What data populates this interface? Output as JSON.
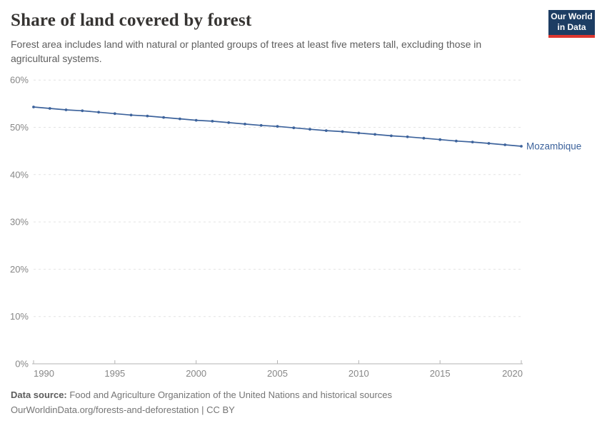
{
  "header": {
    "title": "Share of land covered by forest",
    "subtitle": "Forest area includes land with natural or planted groups of trees at least five meters tall, excluding those in agricultural systems.",
    "logo": {
      "line1": "Our World",
      "line2": "in Data",
      "bg_color": "#1d3d63",
      "bar_color": "#dd362f"
    }
  },
  "chart_data": {
    "type": "line",
    "title": "Share of land covered by forest",
    "xlabel": "",
    "ylabel": "",
    "xlim": [
      1990,
      2020
    ],
    "ylim": [
      0,
      60
    ],
    "grid": "horizontal-dashed",
    "legend_position": "end-of-line-label",
    "series": [
      {
        "name": "Mozambique",
        "color": "#3d639c",
        "marker": "dot",
        "x": [
          1990,
          1991,
          1992,
          1993,
          1994,
          1995,
          1996,
          1997,
          1998,
          1999,
          2000,
          2001,
          2002,
          2003,
          2004,
          2005,
          2006,
          2007,
          2008,
          2009,
          2010,
          2011,
          2012,
          2013,
          2014,
          2015,
          2016,
          2017,
          2018,
          2019,
          2020
        ],
        "values": [
          54.3,
          54.0,
          53.7,
          53.5,
          53.2,
          52.9,
          52.6,
          52.4,
          52.1,
          51.8,
          51.5,
          51.3,
          51.0,
          50.7,
          50.4,
          50.2,
          49.9,
          49.6,
          49.3,
          49.1,
          48.8,
          48.5,
          48.2,
          48.0,
          47.7,
          47.4,
          47.1,
          46.9,
          46.6,
          46.3,
          46.0
        ]
      }
    ],
    "xticks": [
      {
        "value": 1990,
        "label": "1990"
      },
      {
        "value": 1995,
        "label": "1995"
      },
      {
        "value": 2000,
        "label": "2000"
      },
      {
        "value": 2005,
        "label": "2005"
      },
      {
        "value": 2010,
        "label": "2010"
      },
      {
        "value": 2015,
        "label": "2015"
      },
      {
        "value": 2020,
        "label": "2020"
      }
    ],
    "yticks": [
      {
        "value": 0,
        "label": "0%"
      },
      {
        "value": 10,
        "label": "10%"
      },
      {
        "value": 20,
        "label": "20%"
      },
      {
        "value": 30,
        "label": "30%"
      },
      {
        "value": 40,
        "label": "40%"
      },
      {
        "value": 50,
        "label": "50%"
      },
      {
        "value": 60,
        "label": "60%"
      }
    ]
  },
  "colors": {
    "gridline": "#e2e2e2",
    "axis_line": "#b3b3b3",
    "tick_label": "#878787",
    "line_blue": "#3d639c"
  },
  "footer": {
    "source_label": "Data source:",
    "source_text": " Food and Agriculture Organization of the United Nations and historical sources",
    "citation": "OurWorldinData.org/forests-and-deforestation | CC BY"
  }
}
